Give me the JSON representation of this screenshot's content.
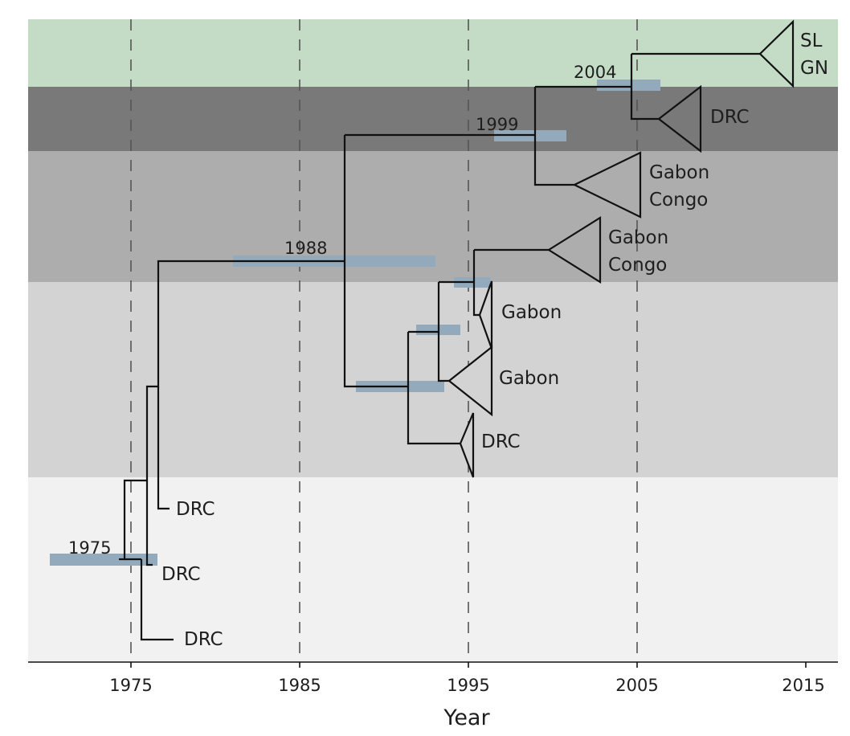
{
  "axis": {
    "title": "Year",
    "ticks": [
      {
        "year": 1975,
        "label": "1975"
      },
      {
        "year": 1985,
        "label": "1985"
      },
      {
        "year": 1995,
        "label": "1995"
      },
      {
        "year": 2005,
        "label": "2005"
      },
      {
        "year": 2015,
        "label": "2015"
      }
    ]
  },
  "colors": {
    "band_sl_gn": "#c4dcc6",
    "band_drc_2004": "#797979",
    "band_gabon_congo": "#adadad",
    "band_gabon_mid": "#d3d3d3",
    "band_early": "#f1f1f1",
    "hpd_bar": "#93a9bc",
    "branch": "#111111"
  },
  "nodes": [
    {
      "id": "root",
      "year_label": "1975",
      "year": 1975
    },
    {
      "id": "n1988",
      "year_label": "1988",
      "year": 1988
    },
    {
      "id": "n1999",
      "year_label": "1999",
      "year": 1999
    },
    {
      "id": "n2004",
      "year_label": "2004",
      "year": 2004
    }
  ],
  "tips": {
    "sl_gn": {
      "lines": [
        "SL",
        "GN"
      ]
    },
    "drc_2004": {
      "lines": [
        "DRC"
      ]
    },
    "gabon_congo_1": {
      "lines": [
        "Gabon",
        "Congo"
      ]
    },
    "gabon_congo_2": {
      "lines": [
        "Gabon",
        "Congo"
      ]
    },
    "gabon_a": {
      "lines": [
        "Gabon"
      ]
    },
    "gabon_b": {
      "lines": [
        "Gabon"
      ]
    },
    "drc_mid": {
      "lines": [
        "DRC"
      ]
    },
    "drc_early_1": {
      "lines": [
        "DRC"
      ]
    },
    "drc_early_2": {
      "lines": [
        "DRC"
      ]
    },
    "drc_early_3": {
      "lines": [
        "DRC"
      ]
    }
  }
}
